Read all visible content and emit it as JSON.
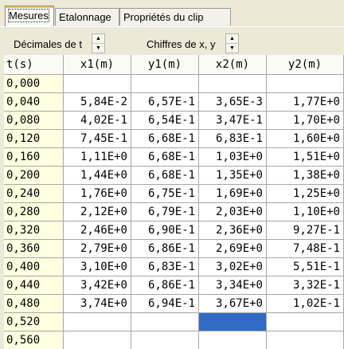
{
  "tabs": [
    {
      "label": "Mesures",
      "active": true
    },
    {
      "label": "Etalonnage",
      "active": false
    },
    {
      "label": "Propriétés du clip",
      "active": false
    }
  ],
  "toolbar": {
    "decimals_label": "Décimales de t",
    "digits_label": "Chiffres de x, y",
    "spinner_up_icon": "triangle-up-icon",
    "spinner_down_icon": "triangle-down-icon"
  },
  "table": {
    "headers": [
      "t(s)",
      "x1(m)",
      "y1(m)",
      "x2(m)",
      "y2(m)"
    ],
    "rows": [
      [
        "0,000",
        "",
        "",
        "",
        ""
      ],
      [
        "0,040",
        "5,84E-2",
        "6,57E-1",
        "3,65E-3",
        "1,77E+0"
      ],
      [
        "0,080",
        "4,02E-1",
        "6,54E-1",
        "3,47E-1",
        "1,70E+0"
      ],
      [
        "0,120",
        "7,45E-1",
        "6,68E-1",
        "6,83E-1",
        "1,60E+0"
      ],
      [
        "0,160",
        "1,11E+0",
        "6,68E-1",
        "1,03E+0",
        "1,51E+0"
      ],
      [
        "0,200",
        "1,44E+0",
        "6,68E-1",
        "1,35E+0",
        "1,38E+0"
      ],
      [
        "0,240",
        "1,76E+0",
        "6,75E-1",
        "1,69E+0",
        "1,25E+0"
      ],
      [
        "0,280",
        "2,12E+0",
        "6,79E-1",
        "2,03E+0",
        "1,10E+0"
      ],
      [
        "0,320",
        "2,46E+0",
        "6,90E-1",
        "2,36E+0",
        "9,27E-1"
      ],
      [
        "0,360",
        "2,79E+0",
        "6,86E-1",
        "2,69E+0",
        "7,48E-1"
      ],
      [
        "0,400",
        "3,10E+0",
        "6,83E-1",
        "3,02E+0",
        "5,51E-1"
      ],
      [
        "0,440",
        "3,42E+0",
        "6,86E-1",
        "3,34E+0",
        "3,32E-1"
      ],
      [
        "0,480",
        "3,74E+0",
        "6,94E-1",
        "3,67E+0",
        "1,02E-1"
      ],
      [
        "0,520",
        "",
        "",
        "",
        ""
      ],
      [
        "0,560",
        "",
        "",
        "",
        ""
      ]
    ],
    "selected_cell": {
      "row": 13,
      "col": 3
    },
    "selection_color": "#316ac5",
    "time_column_color": "#ffffe1"
  }
}
